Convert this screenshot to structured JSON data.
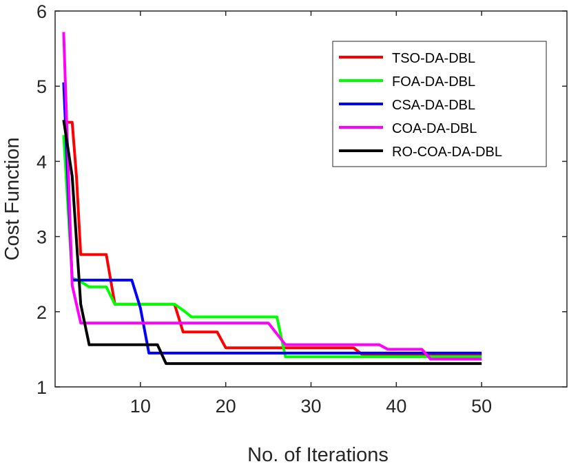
{
  "chart_data": {
    "type": "line",
    "title": "",
    "xlabel": "No. of Iterations",
    "ylabel": "Cost Function",
    "xlim": [
      0,
      60
    ],
    "ylim": [
      1,
      6
    ],
    "xticks": [
      10,
      20,
      30,
      40,
      50
    ],
    "yticks": [
      1,
      2,
      3,
      4,
      5,
      6
    ],
    "grid": false,
    "legend_position": "top-right",
    "series": [
      {
        "name": "TSO-DA-DBL",
        "color": "#ff0000",
        "points": [
          [
            1,
            4.52
          ],
          [
            2,
            4.52
          ],
          [
            2.5,
            3.8
          ],
          [
            3,
            2.76
          ],
          [
            6,
            2.76
          ],
          [
            7,
            2.1
          ],
          [
            14,
            2.1
          ],
          [
            15,
            1.73
          ],
          [
            19,
            1.73
          ],
          [
            20,
            1.52
          ],
          [
            35,
            1.52
          ],
          [
            36,
            1.43
          ],
          [
            50,
            1.43
          ]
        ]
      },
      {
        "name": "FOA-DA-DBL",
        "color": "#00ff00",
        "points": [
          [
            1,
            4.35
          ],
          [
            2,
            2.45
          ],
          [
            3,
            2.4
          ],
          [
            4,
            2.33
          ],
          [
            6,
            2.33
          ],
          [
            7,
            2.1
          ],
          [
            14,
            2.1
          ],
          [
            15,
            2.02
          ],
          [
            16,
            1.93
          ],
          [
            26,
            1.93
          ],
          [
            27,
            1.4
          ],
          [
            50,
            1.4
          ]
        ]
      },
      {
        "name": "CSA-DA-DBL",
        "color": "#0000ff",
        "points": [
          [
            1,
            5.05
          ],
          [
            2,
            2.42
          ],
          [
            9,
            2.42
          ],
          [
            10,
            2.05
          ],
          [
            11,
            1.45
          ],
          [
            50,
            1.45
          ]
        ]
      },
      {
        "name": "COA-DA-DBL",
        "color": "#ff00ff",
        "points": [
          [
            1,
            5.72
          ],
          [
            2,
            2.35
          ],
          [
            3,
            1.85
          ],
          [
            25,
            1.85
          ],
          [
            27,
            1.56
          ],
          [
            38,
            1.56
          ],
          [
            39,
            1.5
          ],
          [
            43,
            1.5
          ],
          [
            44,
            1.37
          ],
          [
            50,
            1.37
          ]
        ]
      },
      {
        "name": "RO-COA-DA-DBL",
        "color": "#000000",
        "points": [
          [
            1,
            4.55
          ],
          [
            2,
            3.8
          ],
          [
            3,
            2.1
          ],
          [
            4,
            1.56
          ],
          [
            12,
            1.56
          ],
          [
            13,
            1.31
          ],
          [
            50,
            1.31
          ]
        ]
      }
    ]
  }
}
